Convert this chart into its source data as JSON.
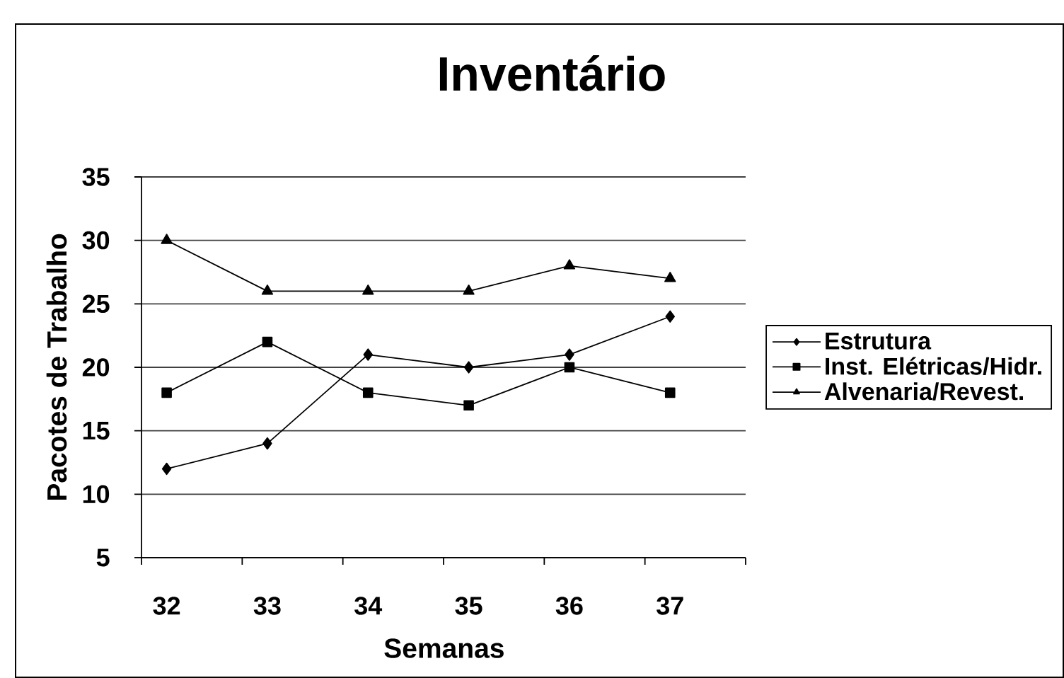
{
  "chart_data": {
    "type": "line",
    "title": "Inventário",
    "xlabel": "Semanas",
    "ylabel": "Pacotes de Trabalho",
    "categories": [
      "32",
      "33",
      "34",
      "35",
      "36",
      "37"
    ],
    "series": [
      {
        "name": "Estrutura",
        "color": "#000000",
        "marker": "diamond",
        "values": [
          12,
          14,
          21,
          20,
          21,
          24
        ]
      },
      {
        "name": "Inst. Elétricas/Hidr.",
        "color": "#000000",
        "marker": "square",
        "values": [
          18,
          22,
          18,
          17,
          20,
          18
        ]
      },
      {
        "name": "Alvenaria/Revest.",
        "color": "#000000",
        "marker": "triangle",
        "values": [
          30,
          26,
          26,
          26,
          28,
          27
        ]
      }
    ],
    "ylim": [
      5,
      35
    ],
    "yticks": [
      5,
      10,
      15,
      20,
      25,
      30,
      35
    ],
    "grid": "y",
    "legend": "right",
    "line_style": "solid"
  }
}
